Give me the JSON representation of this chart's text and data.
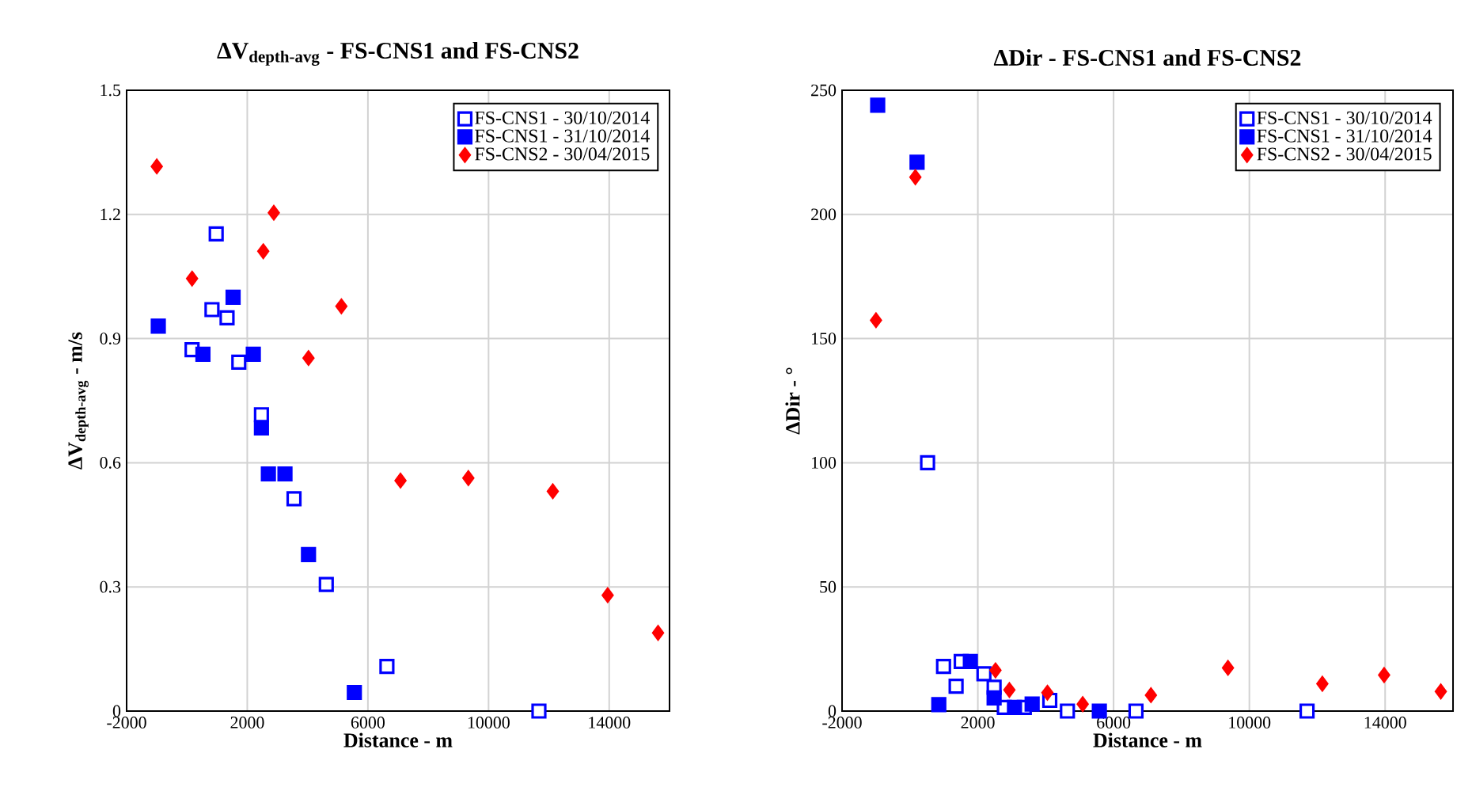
{
  "chart_data": [
    {
      "type": "scatter",
      "title": "ΔV$_{depth-avg}$ - FS-CNS1 and FS-CNS2",
      "xlabel": "Distance - m",
      "ylabel": "ΔV$_{depth-avg}$ - m/s",
      "xlim": [
        -2000,
        16000
      ],
      "xticks": [
        -2000,
        2000,
        6000,
        10000,
        14000
      ],
      "ylim": [
        0,
        1.5
      ],
      "yticks": [
        0,
        0.3,
        0.6,
        0.9,
        1.2,
        1.5
      ],
      "grid": true,
      "legend": "top right",
      "series": [
        {
          "name": "FS-CNS1 - 30/10/2014",
          "color": "#0000ff",
          "marker": "square",
          "x": [
            970,
            830,
            1330,
            170,
            1720,
            2470,
            3550,
            4620,
            6630,
            11670
          ],
          "values": [
            1.153,
            0.97,
            0.95,
            0.873,
            0.843,
            0.716,
            0.513,
            0.306,
            0.108,
            0
          ]
        },
        {
          "name": "FS-CNS1 - 31/10/2014",
          "color": "#0000ff",
          "marker": "square",
          "x": [
            -950,
            1530,
            530,
            2200,
            2470,
            2700,
            3250,
            4030,
            5550
          ],
          "values": [
            0.93,
            1.0,
            0.862,
            0.862,
            0.684,
            0.573,
            0.573,
            0.378,
            0.045
          ]
        },
        {
          "name": "FS-CNS2 - 30/04/2015",
          "color": "#ff0000",
          "marker": "diamond",
          "x": [
            -1000,
            170,
            2880,
            2530,
            5120,
            4030,
            7080,
            9330,
            12130,
            13950,
            15620
          ],
          "values": [
            1.316,
            1.045,
            1.204,
            1.111,
            0.978,
            0.853,
            0.557,
            0.563,
            0.531,
            0.28,
            0.189
          ]
        }
      ]
    },
    {
      "type": "scatter",
      "title": "ΔDir - FS-CNS1 and FS-CNS2",
      "xlabel": "Distance - m",
      "ylabel": "ΔDir - °",
      "xlim": [
        -2000,
        16000
      ],
      "xticks": [
        -2000,
        2000,
        6000,
        10000,
        14000
      ],
      "ylim": [
        0,
        250
      ],
      "yticks": [
        0,
        50,
        100,
        150,
        200,
        250
      ],
      "grid": true,
      "legend": "top right",
      "series": [
        {
          "name": "FS-CNS1 - 30/10/2014",
          "color": "#0000ff",
          "marker": "square",
          "x": [
            520,
            990,
            1360,
            1510,
            2180,
            2480,
            2780,
            3370,
            4120,
            4640,
            6660,
            11700
          ],
          "values": [
            100,
            18,
            10,
            20,
            15,
            9.6,
            1.5,
            1.5,
            4.3,
            0,
            0,
            0
          ]
        },
        {
          "name": "FS-CNS1 - 31/10/2014",
          "color": "#0000ff",
          "marker": "square",
          "x": [
            -950,
            210,
            850,
            1780,
            2480,
            3080,
            3600,
            5580
          ],
          "values": [
            244,
            221,
            2.6,
            20,
            5.3,
            1.5,
            2.8,
            0
          ]
        },
        {
          "name": "FS-CNS2 - 30/04/2015",
          "color": "#ff0000",
          "marker": "diamond",
          "x": [
            -1000,
            160,
            2520,
            2930,
            4050,
            5090,
            7100,
            9370,
            12150,
            13970,
            15640
          ],
          "values": [
            157.4,
            215,
            16.4,
            8.5,
            7.4,
            2.8,
            6.4,
            17.4,
            11,
            14.5,
            7.9
          ]
        }
      ]
    }
  ]
}
